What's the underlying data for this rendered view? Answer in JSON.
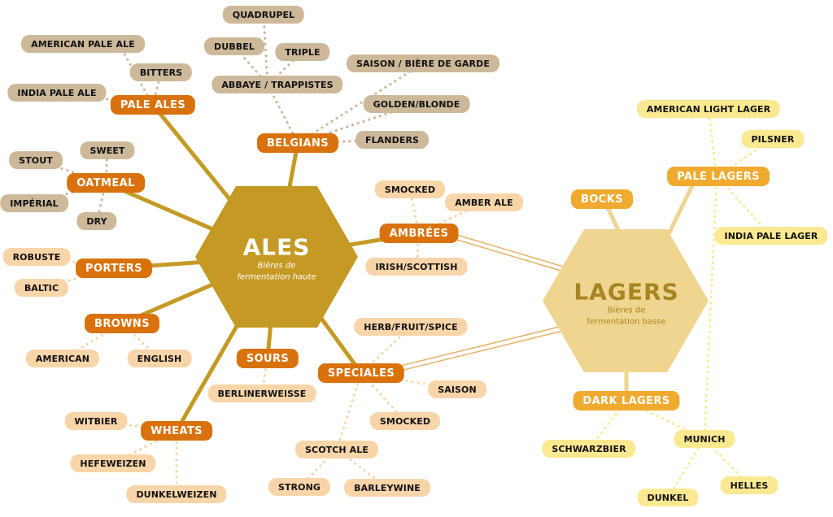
{
  "colors": {
    "ales_hex": "#c59a24",
    "lagers_hex": "#f0d590",
    "ale_category": "#d9720c",
    "ale_sub_tan": "#cdb99a",
    "ale_sub_peach": "#f8d5a8",
    "lager_category": "#f0aa30",
    "lager_sub": "#fbe992"
  },
  "ales": {
    "title": "ALES",
    "subtitle_line1": "Bières de",
    "subtitle_line2": "fermentation haute"
  },
  "lagers": {
    "title": "LAGERS",
    "subtitle_line1": "Bières de",
    "subtitle_line2": "fermentation basse"
  },
  "ale_categories": {
    "pale_ales": "PALE ALES",
    "belgians": "BELGIANS",
    "oatmeal": "OATMEAL",
    "porters": "PORTERS",
    "ambrees": "AMBRÉES",
    "browns": "BROWNS",
    "sours": "SOURS",
    "speciales": "SPECIALES",
    "wheats": "WHEATS"
  },
  "ale_styles": {
    "quadrupel": "QUADRUPEL",
    "dubbel": "DUBBEL",
    "triple": "TRIPLE",
    "abbaye": "ABBAYE / TRAPPISTES",
    "american_pale_ale": "AMERICAN PALE ALE",
    "bitters": "BITTERS",
    "india_pale_ale": "INDIA PALE ALE",
    "saison_garde": "SAISON / BIÈRE DE GARDE",
    "golden_blonde": "GOLDEN/BLONDE",
    "flanders": "FLANDERS",
    "stout": "STOUT",
    "sweet": "SWEET",
    "imperial": "IMPÉRIAL",
    "dry": "DRY",
    "smocked_amb": "SMOCKED",
    "amber_ale": "AMBER ALE",
    "irish_scottish": "IRISH/SCOTTISH",
    "robuste": "ROBUSTE",
    "baltic": "BALTIC",
    "american": "AMERICAN",
    "english": "ENGLISH",
    "herb_fruit_spice": "HERB/FRUIT/SPICE",
    "berlinerweisse": "BERLINERWEISSE",
    "saison": "SAISON",
    "smocked_spec": "SMOCKED",
    "witbier": "WITBIER",
    "hefeweizen": "HEFEWEIZEN",
    "dunkelweizen": "DUNKELWEIZEN",
    "scotch_ale": "SCOTCH ALE",
    "strong": "STRONG",
    "barleywine": "BARLEYWINE"
  },
  "lager_categories": {
    "bocks": "BOCKS",
    "pale_lagers": "PALE LAGERS",
    "dark_lagers": "DARK LAGERS"
  },
  "lager_styles": {
    "american_light_lager": "AMERICAN LIGHT LAGER",
    "pilsner": "PILSNER",
    "india_pale_lager": "INDIA PALE LAGER",
    "schwarzbier": "SCHWARZBIER",
    "munich": "MUNICH",
    "dunkel": "DUNKEL",
    "helles": "HELLES"
  }
}
